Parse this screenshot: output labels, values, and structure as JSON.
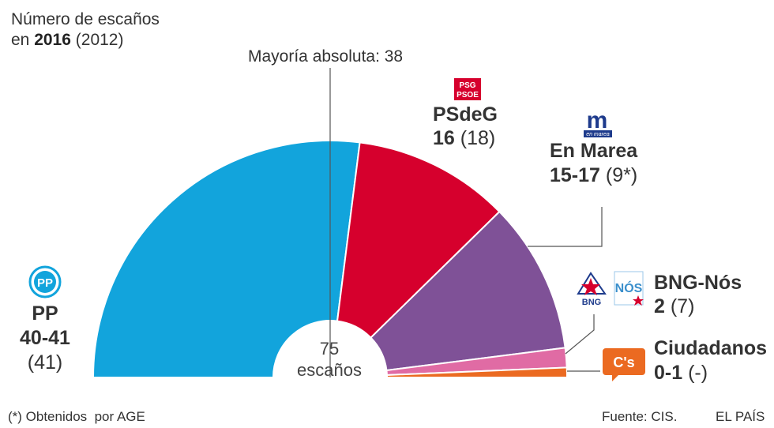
{
  "subtitle": {
    "line1": "Número de escaños",
    "line2_prefix": "en ",
    "line2_year": "2016",
    "line2_prev": "(2012)"
  },
  "majority_label": "Mayoría absoluta: 38",
  "center": {
    "total": "75",
    "unit": "escaños"
  },
  "footnote": "(*) Obtenidos  por AGE",
  "source": "Fuente: CIS.",
  "brand": "EL PAÍS",
  "chart_data": {
    "type": "pie",
    "subtype": "half-donut parliament",
    "total_seats": 75,
    "majority": 38,
    "series": [
      {
        "party": "PP",
        "seats_range": "40-41",
        "prev": "(41)",
        "value": 40.5,
        "color": "#12a4dc",
        "logo_text": "PP"
      },
      {
        "party": "PSdeG",
        "seats_range": "16",
        "prev": "(18)",
        "value": 16,
        "color": "#d6002d",
        "logo_text_1": "PSG",
        "logo_text_2": "PSOE"
      },
      {
        "party": "En Marea",
        "seats_range": "15-17",
        "prev": "(9*)",
        "value": 15.5,
        "color": "#7f5197",
        "logo_text_1": "m",
        "logo_text_2": "en marea"
      },
      {
        "party": "BNG-Nós",
        "seats_range": "2",
        "prev": "(7)",
        "value": 2,
        "color": "#e06ba4",
        "logo_text_1": "BNG",
        "logo_text_2": "NÓS"
      },
      {
        "party": "Ciudadanos",
        "seats_range": "0-1",
        "prev": "(-)",
        "value": 1,
        "color": "#eb6a21",
        "logo_text": "C's"
      }
    ]
  }
}
